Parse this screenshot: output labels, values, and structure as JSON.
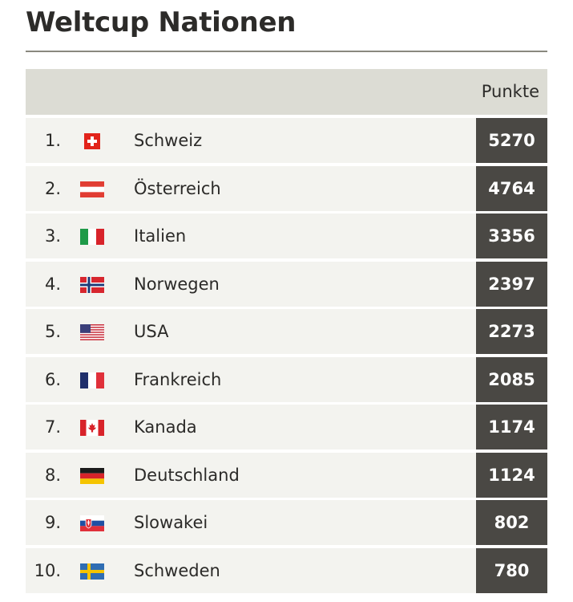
{
  "title": "Weltcup Nationen",
  "table": {
    "points_header": "Punkte",
    "rows": [
      {
        "rank": "1.",
        "flag": "switzerland-flag-icon",
        "country": "Schweiz",
        "points": "5270"
      },
      {
        "rank": "2.",
        "flag": "austria-flag-icon",
        "country": "Österreich",
        "points": "4764"
      },
      {
        "rank": "3.",
        "flag": "italy-flag-icon",
        "country": "Italien",
        "points": "3356"
      },
      {
        "rank": "4.",
        "flag": "norway-flag-icon",
        "country": "Norwegen",
        "points": "2397"
      },
      {
        "rank": "5.",
        "flag": "usa-flag-icon",
        "country": "USA",
        "points": "2273"
      },
      {
        "rank": "6.",
        "flag": "france-flag-icon",
        "country": "Frankreich",
        "points": "2085"
      },
      {
        "rank": "7.",
        "flag": "canada-flag-icon",
        "country": "Kanada",
        "points": "1174"
      },
      {
        "rank": "8.",
        "flag": "germany-flag-icon",
        "country": "Deutschland",
        "points": "1124"
      },
      {
        "rank": "9.",
        "flag": "slovakia-flag-icon",
        "country": "Slowakei",
        "points": "802"
      },
      {
        "rank": "10.",
        "flag": "sweden-flag-icon",
        "country": "Schweden",
        "points": "780"
      }
    ]
  },
  "colors": {
    "header_bg": "#dcdcd4",
    "row_bg": "#f3f3ef",
    "points_bg": "#4a4844",
    "title_rule": "#8a897f"
  }
}
